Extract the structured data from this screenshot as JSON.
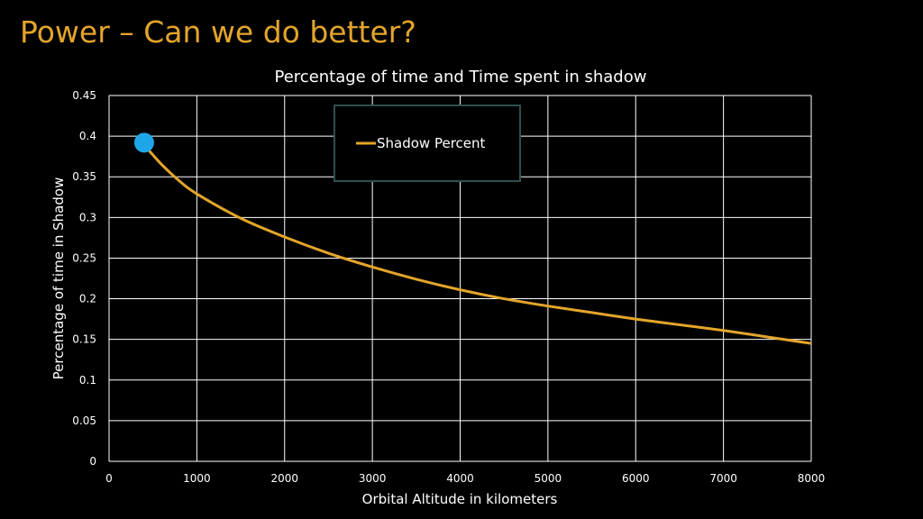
{
  "slide": {
    "title": "Power – Can we do better?",
    "title_color": "#E3A52A"
  },
  "chart_data": {
    "type": "line",
    "title": "Percentage of time and Time spent in shadow",
    "xlabel": "Orbital Altitude in kilometers",
    "ylabel": "Percentage of time  in Shadow",
    "xlim": [
      0,
      8000
    ],
    "ylim": [
      0,
      0.45
    ],
    "x_ticks": [
      0,
      1000,
      2000,
      3000,
      4000,
      5000,
      6000,
      7000,
      8000
    ],
    "x_tick_labels": [
      "0",
      "1000",
      "2000",
      "3000",
      "4000",
      "5000",
      "6000",
      "7000",
      "8000"
    ],
    "y_ticks": [
      0,
      0.05,
      0.1,
      0.15,
      0.2,
      0.25,
      0.3,
      0.35,
      0.4,
      0.45
    ],
    "y_tick_labels": [
      "0",
      "0.05",
      "0.1",
      "0.15",
      "0.2",
      "0.25",
      "0.3",
      "0.35",
      "0.4",
      "0.45"
    ],
    "grid": true,
    "legend_position": "top-center",
    "series": [
      {
        "name": "Shadow Percent",
        "color": "#E3A52A",
        "x": [
          400,
          600,
          800,
          1000,
          1500,
          2000,
          2500,
          3000,
          3500,
          4000,
          4500,
          5000,
          5500,
          6000,
          6500,
          7000,
          7500,
          8000
        ],
        "y": [
          0.389,
          0.365,
          0.345,
          0.329,
          0.299,
          0.276,
          0.256,
          0.239,
          0.224,
          0.211,
          0.2,
          0.191,
          0.183,
          0.175,
          0.168,
          0.161,
          0.153,
          0.145
        ]
      }
    ],
    "highlight_point": {
      "x": 400,
      "y": 0.392,
      "color": "#1EA7E8"
    },
    "text_color": "#FFFFFF",
    "grid_color": "#FFFFFF",
    "legend_border_color": "#2F4F4F"
  }
}
